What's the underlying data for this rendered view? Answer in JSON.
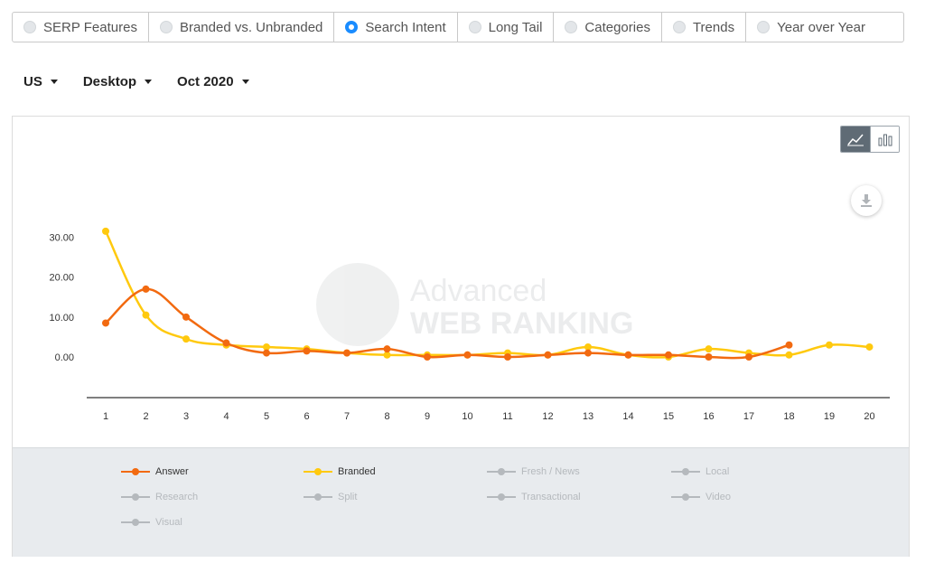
{
  "tabs": [
    {
      "label": "SERP Features",
      "selected": false
    },
    {
      "label": "Branded vs. Unbranded",
      "selected": false
    },
    {
      "label": "Search Intent",
      "selected": true
    },
    {
      "label": "Long Tail",
      "selected": false
    },
    {
      "label": "Categories",
      "selected": false
    },
    {
      "label": "Trends",
      "selected": false
    },
    {
      "label": "Year over Year",
      "selected": false
    }
  ],
  "filters": {
    "country": "US",
    "device": "Desktop",
    "date": "Oct 2020"
  },
  "watermark": {
    "line1": "Advanced",
    "line2": "WEB RANKING"
  },
  "colors": {
    "answer": "#f26a10",
    "branded": "#ffc90e",
    "inactive": "#b5b9bd",
    "accent": "#1a8cff"
  },
  "chart_data": {
    "type": "line",
    "title": "",
    "xlabel": "",
    "ylabel": "",
    "categories": [
      "1",
      "2",
      "3",
      "4",
      "5",
      "6",
      "7",
      "8",
      "9",
      "10",
      "11",
      "12",
      "13",
      "14",
      "15",
      "16",
      "17",
      "18",
      "19",
      "20"
    ],
    "yticks": [
      "30.00",
      "20.00",
      "10.00",
      "0.00"
    ],
    "ylim": [
      -10,
      35
    ],
    "series": [
      {
        "name": "Answer",
        "color": "#f26a10",
        "values": [
          8.5,
          17,
          10,
          3.5,
          1,
          1.5,
          1,
          2,
          0,
          0.5,
          0,
          0.5,
          1,
          0.5,
          0.5,
          0,
          0,
          3,
          null,
          null
        ]
      },
      {
        "name": "Branded",
        "color": "#ffc90e",
        "values": [
          31.5,
          10.5,
          4.5,
          3,
          2.5,
          2,
          1,
          0.5,
          0.5,
          0.5,
          1,
          0.5,
          2.5,
          0.5,
          0,
          2,
          1,
          0.5,
          3,
          2.5
        ]
      }
    ]
  },
  "legend": [
    {
      "label": "Answer",
      "active": true,
      "color": "#f26a10"
    },
    {
      "label": "Branded",
      "active": true,
      "color": "#ffc90e"
    },
    {
      "label": "Fresh / News",
      "active": false,
      "color": "#b5b9bd"
    },
    {
      "label": "Local",
      "active": false,
      "color": "#b5b9bd"
    },
    {
      "label": "Research",
      "active": false,
      "color": "#b5b9bd"
    },
    {
      "label": "Split",
      "active": false,
      "color": "#b5b9bd"
    },
    {
      "label": "Transactional",
      "active": false,
      "color": "#b5b9bd"
    },
    {
      "label": "Video",
      "active": false,
      "color": "#b5b9bd"
    },
    {
      "label": "Visual",
      "active": false,
      "color": "#b5b9bd"
    }
  ],
  "icons": {
    "line_view": "line-chart-icon",
    "bar_view": "bar-chart-icon",
    "download": "download-icon"
  }
}
